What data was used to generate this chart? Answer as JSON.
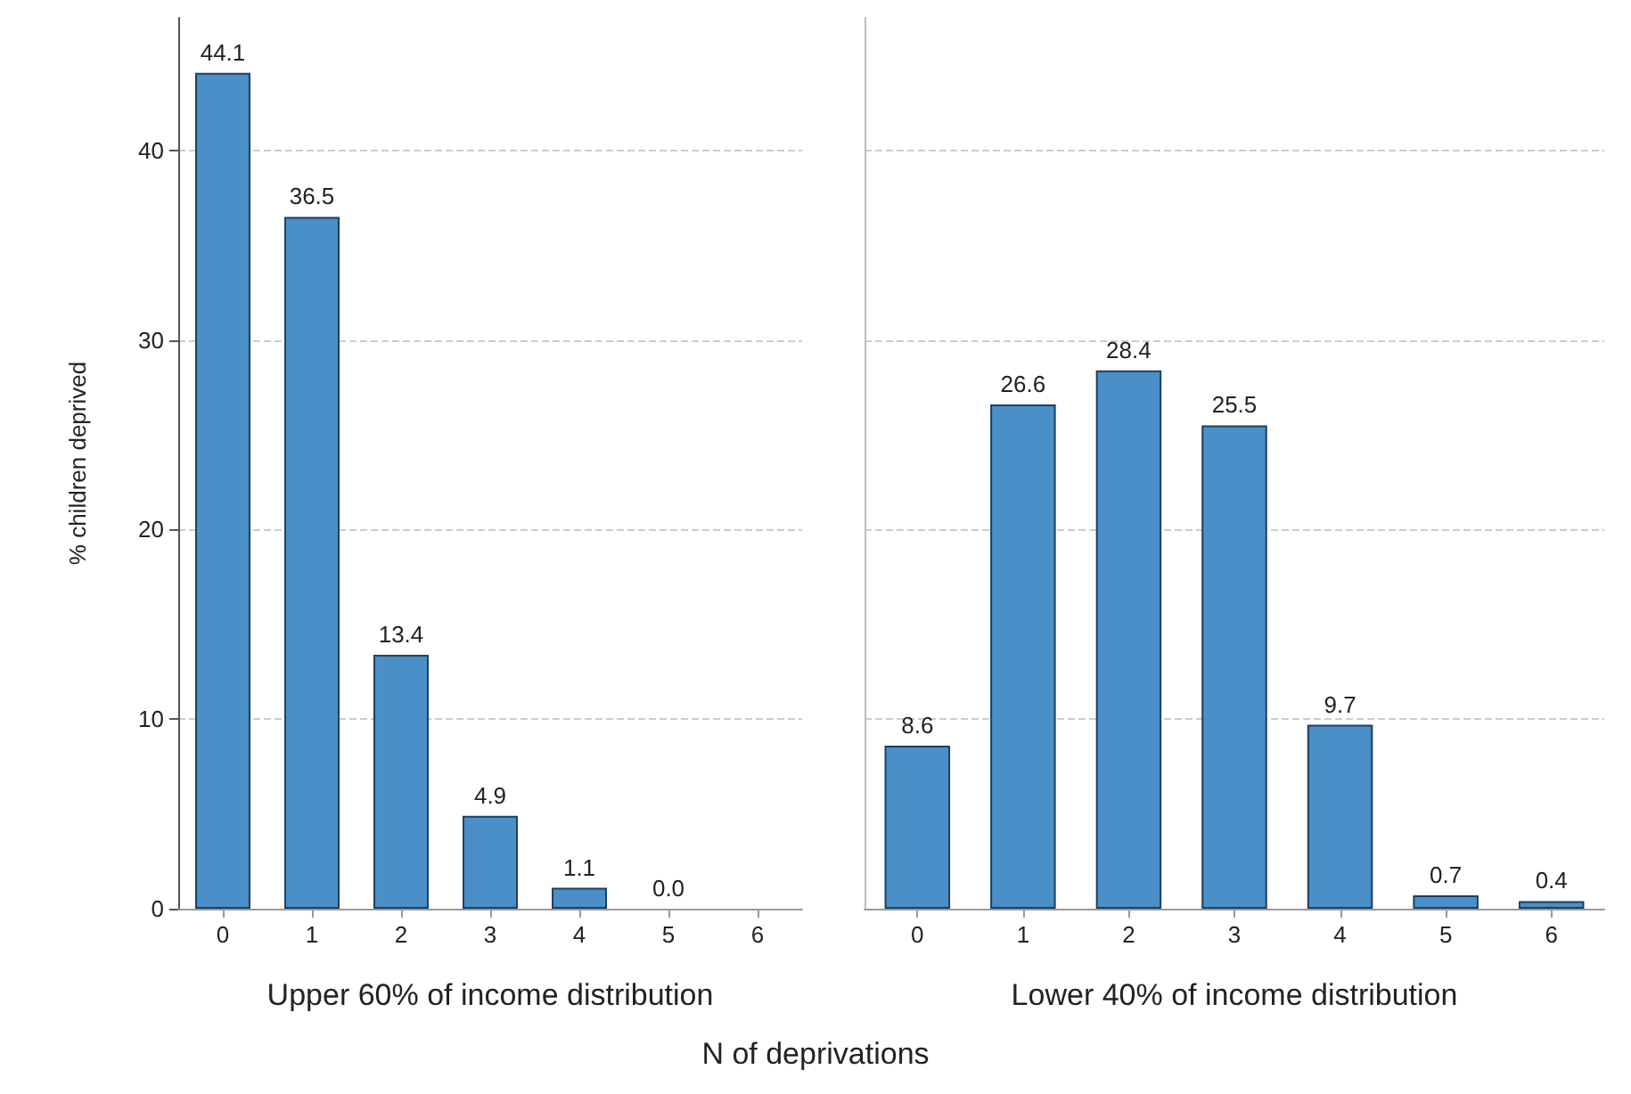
{
  "chart_data": [
    {
      "type": "bar",
      "ylabel": "% children deprived",
      "xlabel": "Upper 60% of income distribution",
      "annotations": [
        "N of deprivations"
      ],
      "categories": [
        "0",
        "1",
        "2",
        "3",
        "4",
        "5",
        "6"
      ],
      "values": [
        44.1,
        36.5,
        13.4,
        4.9,
        1.1,
        0.0,
        null
      ],
      "value_labels": [
        "44.1",
        "36.5",
        "13.4",
        "4.9",
        "1.1",
        "0.0",
        null
      ],
      "color": "#4a8fc7",
      "ylim": [
        0,
        47
      ],
      "yticks": [
        0,
        10,
        20,
        30,
        40
      ],
      "grid": "y"
    },
    {
      "type": "bar",
      "xlabel": "Lower 40% of income distribution",
      "categories": [
        "0",
        "1",
        "2",
        "3",
        "4",
        "5",
        "6"
      ],
      "values": [
        8.6,
        26.6,
        28.4,
        25.5,
        9.7,
        0.7,
        0.4
      ],
      "value_labels": [
        "8.6",
        "26.6",
        "28.4",
        "25.5",
        "9.7",
        "0.7",
        "0.4"
      ],
      "color": "#4a8fc7",
      "ylim": [
        0,
        47
      ],
      "yticks": [
        0,
        10,
        20,
        30,
        40
      ],
      "grid": "y",
      "tick_labels": "x"
    }
  ]
}
